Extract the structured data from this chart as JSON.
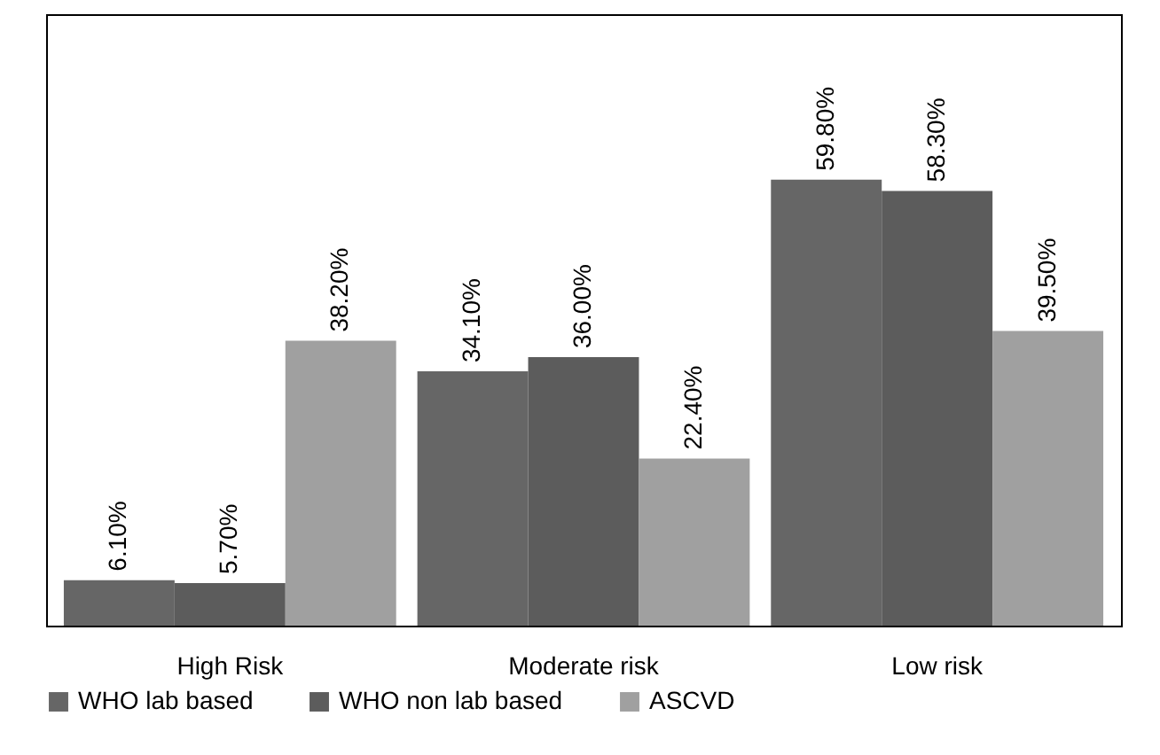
{
  "chart_data": {
    "type": "bar",
    "categories": [
      "High Risk",
      "Moderate risk",
      "Low risk"
    ],
    "series": [
      {
        "name": "WHO lab based",
        "color": "#666666",
        "values": [
          6.1,
          34.1,
          59.8
        ],
        "value_labels": [
          "6.10%",
          "34.10%",
          "59.80%"
        ]
      },
      {
        "name": "WHO non lab based",
        "color": "#5c5c5c",
        "values": [
          5.7,
          36.0,
          58.3
        ],
        "value_labels": [
          "5.70%",
          "36.00%",
          "58.30%"
        ]
      },
      {
        "name": "ASCVD",
        "color": "#a0a0a0",
        "values": [
          38.2,
          22.4,
          39.5
        ],
        "value_labels": [
          "38.20%",
          "22.40%",
          "39.50%"
        ]
      }
    ],
    "ylim": [
      0,
      82
    ],
    "tick_labels": "x",
    "grid": false,
    "legend": "bottom"
  }
}
